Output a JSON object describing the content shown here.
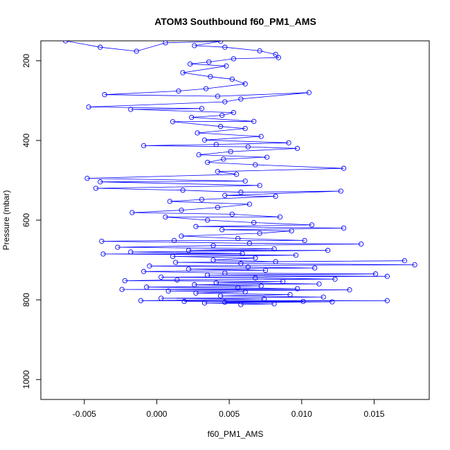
{
  "chart_data": {
    "type": "line",
    "title": "ATOM3 Southbound f60_PM1_AMS",
    "xlabel": "f60_PM1_AMS",
    "ylabel": "Pressure (mbar)",
    "xlim": [
      -0.008,
      0.0188
    ],
    "ylim": [
      1050,
      150
    ],
    "y_reversed": true,
    "x_ticks": [
      -0.005,
      0.0,
      0.005,
      0.01,
      0.015
    ],
    "x_tick_labels": [
      "-0.005",
      "0.000",
      "0.005",
      "0.010",
      "0.015"
    ],
    "y_ticks": [
      200,
      400,
      600,
      800,
      1000
    ],
    "y_tick_labels": [
      "200",
      "400",
      "600",
      "800",
      "1000"
    ],
    "grid": false,
    "legend": "none",
    "series": [
      {
        "color": "#0000ff",
        "marker": "open-circle",
        "points": [
          [
            -0.0063,
            150
          ],
          [
            -0.0039,
            166
          ],
          [
            -0.0014,
            176
          ],
          [
            0.0006,
            155
          ],
          [
            0.0044,
            151
          ],
          [
            0.0026,
            162
          ],
          [
            0.0047,
            166
          ],
          [
            0.0071,
            175
          ],
          [
            0.0082,
            184
          ],
          [
            0.0084,
            192
          ],
          [
            0.0053,
            195
          ],
          [
            0.0036,
            203
          ],
          [
            0.0023,
            208
          ],
          [
            0.0048,
            213
          ],
          [
            0.0018,
            230
          ],
          [
            0.0037,
            240
          ],
          [
            0.0052,
            246
          ],
          [
            0.0061,
            258
          ],
          [
            0.0034,
            270
          ],
          [
            0.0015,
            276
          ],
          [
            -0.0036,
            285
          ],
          [
            0.0042,
            289
          ],
          [
            0.0105,
            280
          ],
          [
            0.0058,
            296
          ],
          [
            0.0047,
            303
          ],
          [
            -0.0047,
            316
          ],
          [
            0.0031,
            320
          ],
          [
            -0.0018,
            322
          ],
          [
            0.0053,
            330
          ],
          [
            0.0045,
            337
          ],
          [
            0.0024,
            342
          ],
          [
            0.0067,
            352
          ],
          [
            0.0011,
            353
          ],
          [
            0.0044,
            365
          ],
          [
            0.0061,
            370
          ],
          [
            0.0028,
            381
          ],
          [
            0.0072,
            390
          ],
          [
            0.0033,
            399
          ],
          [
            0.0091,
            406
          ],
          [
            0.0041,
            410
          ],
          [
            -0.0009,
            413
          ],
          [
            0.0063,
            416
          ],
          [
            0.0097,
            420
          ],
          [
            0.0051,
            428
          ],
          [
            0.0029,
            436
          ],
          [
            0.0076,
            442
          ],
          [
            0.0046,
            447
          ],
          [
            0.0035,
            455
          ],
          [
            0.0068,
            461
          ],
          [
            0.0129,
            470
          ],
          [
            0.0042,
            478
          ],
          [
            0.0055,
            485
          ],
          [
            -0.0048,
            495
          ],
          [
            0.0061,
            502
          ],
          [
            -0.0039,
            504
          ],
          [
            0.0071,
            513
          ],
          [
            -0.0042,
            520
          ],
          [
            0.0018,
            525
          ],
          [
            0.0058,
            530
          ],
          [
            0.0127,
            527
          ],
          [
            0.0047,
            538
          ],
          [
            0.0082,
            540
          ],
          [
            0.0031,
            548
          ],
          [
            0.0009,
            553
          ],
          [
            0.0064,
            560
          ],
          [
            0.0042,
            568
          ],
          [
            0.0017,
            575
          ],
          [
            -0.0017,
            581
          ],
          [
            0.0052,
            585
          ],
          [
            0.0085,
            592
          ],
          [
            0.0006,
            592
          ],
          [
            0.0035,
            600
          ],
          [
            0.0067,
            606
          ],
          [
            0.0107,
            612
          ],
          [
            0.0027,
            616
          ],
          [
            0.0129,
            620
          ],
          [
            0.0045,
            624
          ],
          [
            0.0093,
            627
          ],
          [
            0.0071,
            633
          ],
          [
            0.0017,
            640
          ],
          [
            0.0056,
            646
          ],
          [
            0.0102,
            651
          ],
          [
            0.0012,
            651
          ],
          [
            -0.0038,
            653
          ],
          [
            0.0064,
            658
          ],
          [
            0.0141,
            660
          ],
          [
            0.0039,
            664
          ],
          [
            -0.0027,
            668
          ],
          [
            0.0081,
            672
          ],
          [
            0.0022,
            676
          ],
          [
            0.0118,
            676
          ],
          [
            -0.0018,
            680
          ],
          [
            0.0059,
            684
          ],
          [
            -0.0037,
            685
          ],
          [
            0.0096,
            688
          ],
          [
            0.0011,
            691
          ],
          [
            0.0068,
            695
          ],
          [
            0.0039,
            700
          ],
          [
            0.0082,
            704
          ],
          [
            0.0171,
            702
          ],
          [
            0.0013,
            706
          ],
          [
            0.0058,
            709
          ],
          [
            0.0178,
            712
          ],
          [
            -0.0005,
            715
          ],
          [
            0.0063,
            718
          ],
          [
            0.0109,
            720
          ],
          [
            0.0022,
            723
          ],
          [
            0.0075,
            726
          ],
          [
            -0.0009,
            729
          ],
          [
            0.0047,
            733
          ],
          [
            0.0151,
            735
          ],
          [
            0.0035,
            738
          ],
          [
            0.0159,
            741
          ],
          [
            0.0003,
            743
          ],
          [
            0.0068,
            745
          ],
          [
            0.0123,
            748
          ],
          [
            0.0014,
            750
          ],
          [
            -0.0022,
            752
          ],
          [
            0.0087,
            754
          ],
          [
            0.0041,
            757
          ],
          [
            0.0112,
            760
          ],
          [
            0.0026,
            762
          ],
          [
            0.0072,
            765
          ],
          [
            -0.0007,
            768
          ],
          [
            0.0056,
            770
          ],
          [
            0.0097,
            772
          ],
          [
            -0.0024,
            774
          ],
          [
            0.0133,
            775
          ],
          [
            0.0008,
            778
          ],
          [
            0.0061,
            780
          ],
          [
            0.0027,
            783
          ],
          [
            0.0092,
            787
          ],
          [
            0.0044,
            790
          ],
          [
            0.0115,
            793
          ],
          [
            0.0003,
            796
          ],
          [
            0.0074,
            798
          ],
          [
            -0.0011,
            802
          ],
          [
            0.0159,
            802
          ],
          [
            0.0019,
            804
          ],
          [
            0.0101,
            804
          ],
          [
            0.0047,
            806
          ],
          [
            0.0121,
            805
          ],
          [
            0.0033,
            808
          ],
          [
            0.0081,
            810
          ],
          [
            0.0058,
            812
          ]
        ]
      }
    ]
  }
}
